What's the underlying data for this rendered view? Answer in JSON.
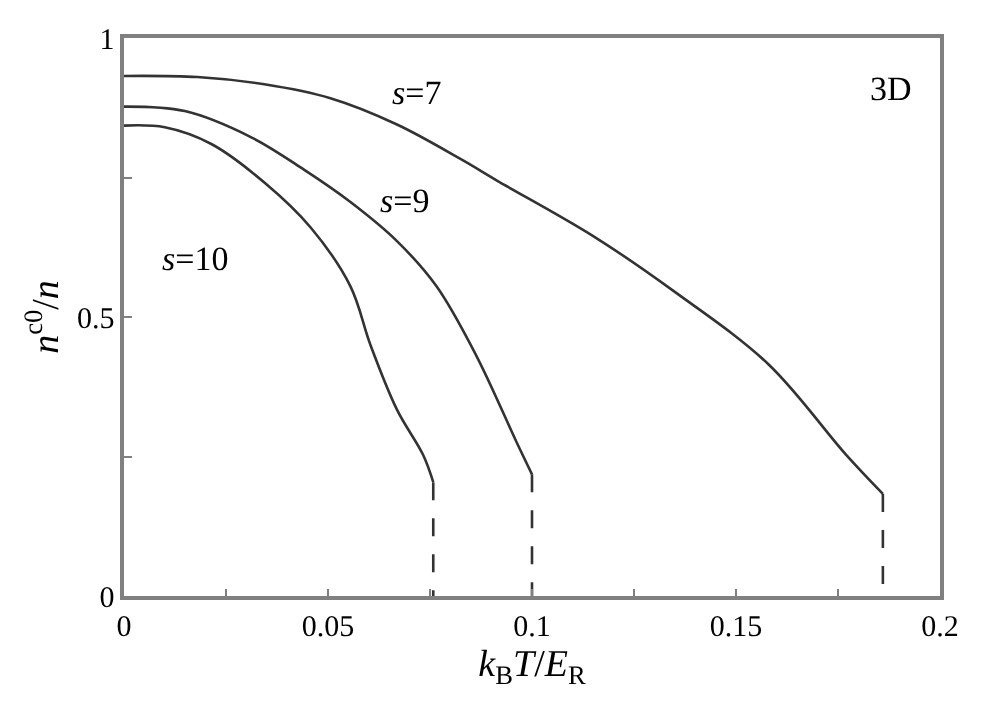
{
  "chart_data": {
    "type": "line",
    "xlabel": "k$_{B}$T/E$_{R}$",
    "ylabel": "n$^{c0}$/n",
    "xlim": [
      0,
      0.2
    ],
    "ylim": [
      0,
      1
    ],
    "xticks": [
      0,
      {
        "value": 0.025,
        "label": null
      },
      0.05,
      {
        "value": 0.075,
        "label": null
      },
      0.1,
      {
        "value": 0.125,
        "label": null
      },
      0.15,
      {
        "value": 0.175,
        "label": null
      },
      0.2
    ],
    "yticks": [
      0,
      {
        "value": 0.25,
        "label": null
      },
      0.5,
      {
        "value": 0.75,
        "label": null
      },
      1
    ],
    "legend": false,
    "marker": "none",
    "series": [
      {
        "name": "s=7",
        "color": "#333333",
        "line_style": "solid",
        "x": [
          0,
          0.018,
          0.0344,
          0.0506,
          0.0669,
          0.083,
          0.0913,
          0.115,
          0.135,
          0.158,
          0.177,
          0.186
        ],
        "values": [
          0.932,
          0.93,
          0.917,
          0.892,
          0.845,
          0.781,
          0.745,
          0.645,
          0.545,
          0.415,
          0.253,
          0.183
        ]
      },
      {
        "name": "s=9",
        "color": "#333333",
        "line_style": "solid",
        "x": [
          0,
          0.0149,
          0.0312,
          0.0441,
          0.0555,
          0.0669,
          0.0766,
          0.0864,
          0.0962,
          0.1
        ],
        "values": [
          0.877,
          0.869,
          0.822,
          0.764,
          0.706,
          0.636,
          0.555,
          0.43,
          0.276,
          0.218
        ]
      },
      {
        "name": "s=10",
        "color": "#333333",
        "line_style": "solid",
        "x": [
          0,
          0.01,
          0.0214,
          0.0344,
          0.0458,
          0.0555,
          0.0604,
          0.0669,
          0.0733,
          0.0758
        ],
        "values": [
          0.843,
          0.84,
          0.81,
          0.741,
          0.66,
          0.555,
          0.45,
          0.334,
          0.253,
          0.204
        ]
      },
      {
        "color": "#333333",
        "line_style": "dashed",
        "x": [
          0.186,
          0.186
        ],
        "values": [
          0.183,
          0
        ]
      },
      {
        "color": "#333333",
        "line_style": "dashed",
        "x": [
          0.1,
          0.1
        ],
        "values": [
          0.218,
          0
        ]
      },
      {
        "color": "#333333",
        "line_style": "dashed",
        "x": [
          0.0758,
          0.0758
        ],
        "values": [
          0.204,
          0
        ]
      }
    ],
    "annotations": [
      "3D"
    ]
  }
}
